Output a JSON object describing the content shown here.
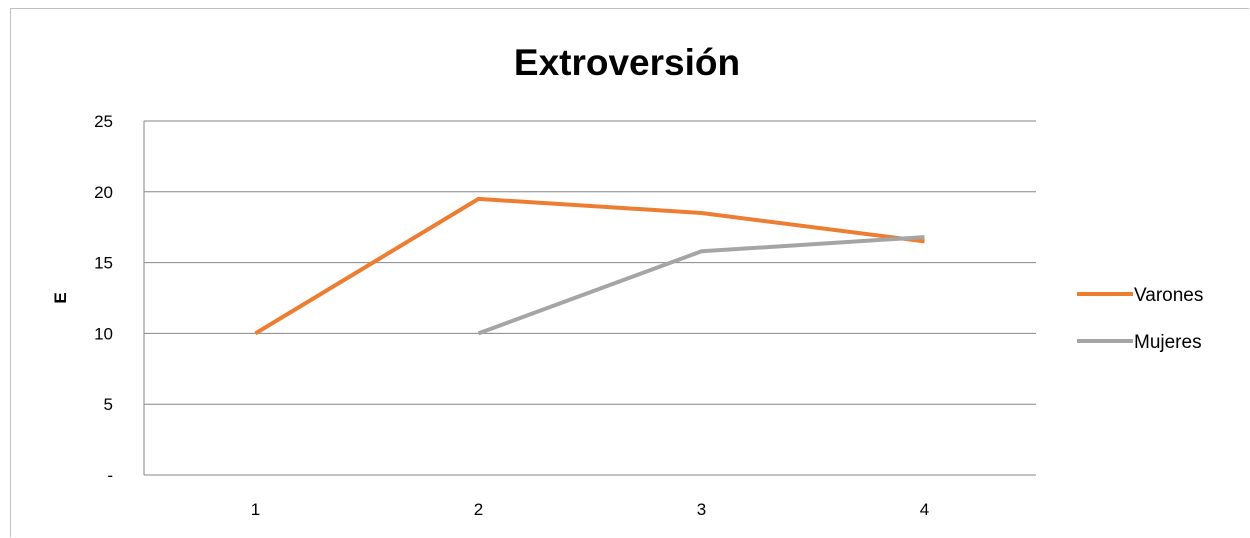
{
  "chart_data": {
    "type": "line",
    "title": "Extroversión",
    "xlabel": "",
    "ylabel": "E",
    "x": [
      "1",
      "2",
      "3",
      "4"
    ],
    "ylim": [
      0,
      25
    ],
    "y_ticks": [
      {
        "value": 0,
        "label": "-"
      },
      {
        "value": 5,
        "label": "5"
      },
      {
        "value": 10,
        "label": "10"
      },
      {
        "value": 15,
        "label": "15"
      },
      {
        "value": 20,
        "label": "20"
      },
      {
        "value": 25,
        "label": "25"
      }
    ],
    "grid": true,
    "legend_position": "right",
    "series": [
      {
        "name": "Varones",
        "color": "#ED7D31",
        "values": [
          10,
          19.5,
          18.5,
          16.5
        ]
      },
      {
        "name": "Mujeres",
        "color": "#A5A5A5",
        "values": [
          null,
          10,
          15.8,
          16.8
        ]
      }
    ]
  }
}
